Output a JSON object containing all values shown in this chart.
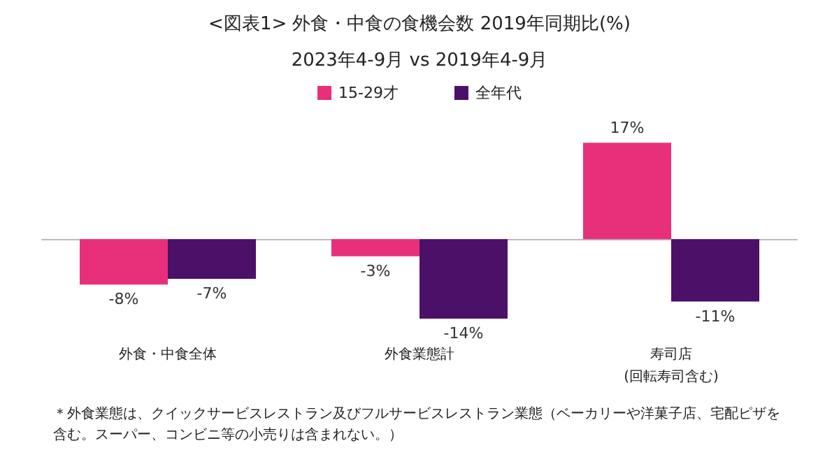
{
  "chart_data": {
    "type": "bar",
    "title": "<図表1> 外食・中食の食機会数 2019年同期比(%)",
    "subtitle": "2023年4-9月 vs 2019年4-9月",
    "categories": [
      "外食・中食全体",
      "外食業態計",
      "寿司店\n(回転寿司含む)"
    ],
    "series": [
      {
        "name": "15-29才",
        "color": "#e8307a",
        "values": [
          -8,
          -3,
          17
        ],
        "value_labels": [
          "-8%",
          "-3%",
          "17%"
        ]
      },
      {
        "name": "全年代",
        "color": "#4b1068",
        "values": [
          -7,
          -14,
          -11
        ],
        "value_labels": [
          "-7%",
          "-14%",
          "-11%"
        ]
      }
    ],
    "legend": "top",
    "grid": false,
    "annotations": [
      "＊外食業態は、クイックサービスレストラン及びフルサービスレストラン業態（ベーカリーや洋菓子店、宅配ピザを含む。スーパー、コンビニ等の小売りは含まれない。）"
    ]
  }
}
